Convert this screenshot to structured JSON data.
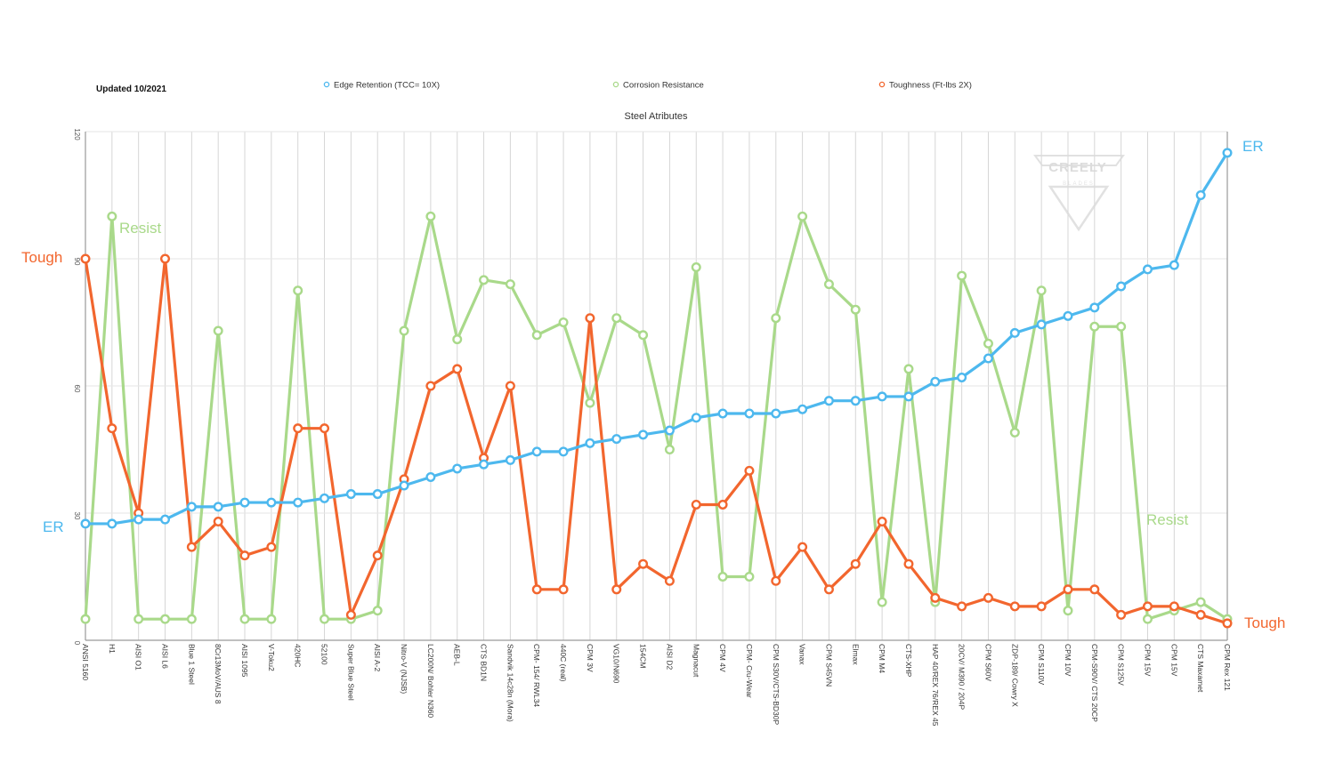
{
  "header": {
    "updated": "Updated 10/2021"
  },
  "watermark": {
    "brand": "CREELY",
    "sub": "BLADES"
  },
  "chart_data": {
    "type": "line",
    "title": "Steel Atributes",
    "xlabel": "",
    "ylabel": "",
    "ylim": [
      0,
      120
    ],
    "yticks": [
      "0",
      "30",
      "60",
      "90",
      "120"
    ],
    "grid": true,
    "legend_position": "top",
    "categories": [
      "ANSI 5160",
      "H1",
      "AISI O1",
      "AISI L6",
      "Blue 1 Steel",
      "8Cr13MoV/AUS 8",
      "AISI 1095",
      "V-Toku2",
      "420HC",
      "52100",
      "Super Blue Steel",
      "AISI A-2",
      "Nitro-V (NJSB)",
      "LC200N/ Bohler N360",
      "AEB-L",
      "CTS BD1N",
      "Sandvik 14c28n (Mora)",
      "CPM- 154/ RWL34",
      "440C (real)",
      "CPM 3V",
      "VG10/N690",
      "154CM",
      "AISI D2",
      "Magnacut",
      "CPM 4V",
      "CPM- Cru-Wear",
      "CPM S30V/CTS-BD30P",
      "Vanax",
      "CPM S45VN",
      "Elmax",
      "CPM M4",
      "CTS-XHP",
      "HAP 40/REX 76/REX 45",
      "20CV/ M390 / 204P",
      "CPM S60V",
      "ZDP-189/ Cowry X",
      "CPM S110V",
      "CPM 10V",
      "CPM-S90V/ CTS 20CP",
      "CPM S125V",
      "CPM 15V",
      "CPM 15V",
      "CTS Maxamet",
      "CPM Rex 121"
    ],
    "series": [
      {
        "name": "Edge Retention (TCC= 10X)",
        "tag": "ER",
        "color": "#4db8ee",
        "values": [
          27.5,
          27.5,
          28.5,
          28.5,
          31.5,
          31.5,
          32.5,
          32.5,
          32.5,
          33.5,
          34.5,
          34.5,
          36.5,
          38.5,
          40.5,
          41.5,
          42.5,
          44.5,
          44.5,
          46.5,
          47.5,
          48.5,
          49.5,
          52.5,
          53.5,
          53.5,
          53.5,
          54.5,
          56.5,
          56.5,
          57.5,
          57.5,
          61,
          62,
          66.5,
          72.5,
          74.5,
          76.5,
          78.5,
          83.5,
          87.5,
          88.5,
          105,
          115
        ]
      },
      {
        "name": "Corrosion Resistance",
        "tag": "Resist",
        "color": "#a9d98a",
        "values": [
          5,
          100,
          5,
          5,
          5,
          73,
          5,
          5,
          82.5,
          5,
          5,
          7,
          73,
          100,
          71,
          85,
          84,
          72,
          75,
          56,
          76,
          72,
          45,
          88,
          15,
          15,
          76,
          100,
          84,
          78,
          9,
          64,
          9,
          86,
          70,
          49,
          82.5,
          7,
          74,
          74,
          5,
          7,
          9,
          5
        ]
      },
      {
        "name": "Toughness (Ft-lbs 2X)",
        "tag": "Tough",
        "color": "#f2662e",
        "values": [
          90,
          50,
          30,
          90,
          22,
          28,
          20,
          22,
          50,
          50,
          6,
          20,
          38,
          60,
          64,
          43,
          60,
          12,
          12,
          76,
          12,
          18,
          14,
          32,
          32,
          40,
          14,
          22,
          12,
          18,
          28,
          18,
          10,
          8,
          10,
          8,
          8,
          12,
          12,
          6,
          8,
          8,
          6,
          4
        ]
      }
    ]
  }
}
